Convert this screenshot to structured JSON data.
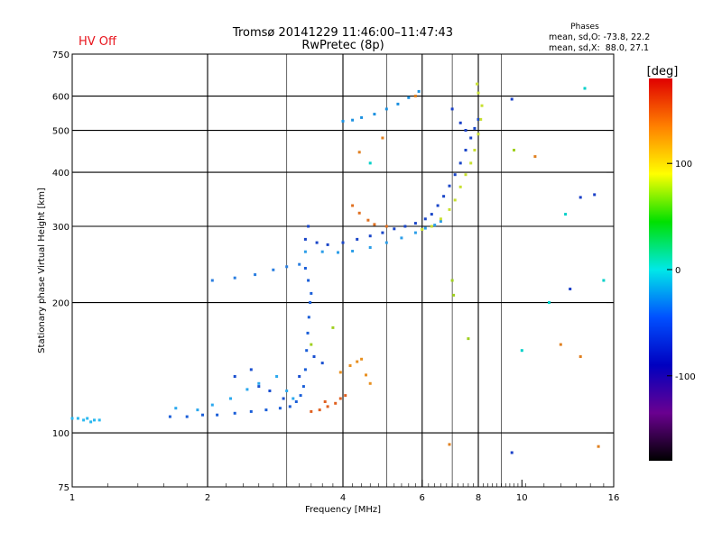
{
  "status": {
    "text": "HV Off",
    "color": "#e8141c"
  },
  "header": {
    "title_line1": "Tromsø 20141229 11:46:00–11:47:43",
    "title_line2": "RwPretec (8p)"
  },
  "phases_box": {
    "title": "Phases",
    "line1": "mean, sd,O: -73.8, 22.2",
    "line2": "mean, sd,X:  88.0, 27.1"
  },
  "chart_data": {
    "type": "scatter",
    "xlabel": "Frequency [MHz]",
    "ylabel": "Stationary phase Virtual Height [km]",
    "x_scale": "log",
    "y_scale": "log",
    "xlim": [
      1,
      16
    ],
    "ylim": [
      75,
      750
    ],
    "x_ticks": [
      1,
      2,
      4,
      6,
      8,
      10,
      16
    ],
    "y_ticks": [
      75,
      100,
      200,
      300,
      400,
      500,
      600,
      750
    ],
    "grid_x_major": [
      2,
      4,
      6,
      8
    ],
    "grid_y_major": [
      100,
      200,
      300,
      400,
      500,
      600
    ],
    "grid_x_minor": [
      3,
      5,
      7,
      9
    ],
    "colorbar": {
      "label": "[deg]",
      "range": [
        -180,
        180
      ],
      "ticks": [
        100,
        0,
        -100
      ],
      "colors": [
        "#e00000",
        "#ff8000",
        "#ffff00",
        "#00e000",
        "#00e8e8",
        "#0050ff",
        "#0000c0",
        "#6a0090",
        "#000000"
      ]
    },
    "series": [
      {
        "color": "#2ab8f0",
        "points": [
          [
            1.0,
            108
          ],
          [
            1.03,
            108
          ],
          [
            1.06,
            107
          ],
          [
            1.08,
            108
          ],
          [
            1.1,
            106
          ],
          [
            1.12,
            107
          ],
          [
            1.15,
            107
          ]
        ]
      },
      {
        "color": "#1a5ed8",
        "points": [
          [
            1.65,
            109
          ],
          [
            1.8,
            109
          ],
          [
            1.95,
            110
          ],
          [
            2.1,
            110
          ],
          [
            2.3,
            111
          ],
          [
            2.5,
            112
          ],
          [
            2.7,
            113
          ],
          [
            2.9,
            114
          ],
          [
            3.05,
            115
          ],
          [
            3.15,
            118
          ],
          [
            3.22,
            122
          ],
          [
            3.27,
            128
          ],
          [
            3.3,
            140
          ],
          [
            3.32,
            155
          ],
          [
            3.34,
            170
          ],
          [
            3.36,
            185
          ],
          [
            3.38,
            200
          ],
          [
            3.4,
            210
          ],
          [
            3.35,
            225
          ],
          [
            3.3,
            240
          ]
        ]
      },
      {
        "color": "#2aa8ee",
        "points": [
          [
            1.7,
            114
          ],
          [
            1.9,
            113
          ],
          [
            2.05,
            116
          ],
          [
            2.25,
            120
          ],
          [
            2.45,
            126
          ],
          [
            2.6,
            130
          ],
          [
            2.85,
            135
          ],
          [
            3.0,
            125
          ],
          [
            3.1,
            120
          ]
        ]
      },
      {
        "color": "#1a50d0",
        "points": [
          [
            2.3,
            135
          ],
          [
            2.5,
            140
          ],
          [
            2.6,
            128
          ],
          [
            2.75,
            125
          ],
          [
            2.95,
            120
          ],
          [
            3.2,
            135
          ],
          [
            3.45,
            150
          ],
          [
            3.6,
            145
          ]
        ]
      },
      {
        "color": "#e06020",
        "points": [
          [
            3.4,
            112
          ],
          [
            3.55,
            113
          ],
          [
            3.7,
            115
          ],
          [
            3.85,
            117
          ],
          [
            3.95,
            120
          ],
          [
            4.05,
            122
          ],
          [
            3.65,
            118
          ]
        ]
      },
      {
        "color": "#e89020",
        "points": [
          [
            3.95,
            138
          ],
          [
            4.15,
            143
          ],
          [
            4.3,
            146
          ],
          [
            4.4,
            148
          ],
          [
            4.5,
            136
          ],
          [
            4.6,
            130
          ]
        ]
      },
      {
        "color": "#2a7ee0",
        "points": [
          [
            2.05,
            225
          ],
          [
            2.3,
            228
          ],
          [
            2.55,
            232
          ],
          [
            2.8,
            238
          ],
          [
            3.0,
            242
          ],
          [
            3.2,
            245
          ]
        ]
      },
      {
        "color": "#2c9ee8",
        "points": [
          [
            3.3,
            262
          ],
          [
            3.6,
            262
          ],
          [
            3.9,
            261
          ],
          [
            4.2,
            263
          ],
          [
            4.6,
            268
          ],
          [
            5.0,
            275
          ],
          [
            5.4,
            282
          ],
          [
            5.8,
            290
          ],
          [
            6.1,
            297
          ],
          [
            6.4,
            302
          ],
          [
            6.6,
            308
          ]
        ]
      },
      {
        "color": "#1a46c8",
        "points": [
          [
            3.3,
            280
          ],
          [
            3.35,
            300
          ],
          [
            3.5,
            275
          ],
          [
            3.7,
            272
          ],
          [
            4.0,
            275
          ],
          [
            4.3,
            280
          ],
          [
            4.6,
            285
          ],
          [
            4.9,
            290
          ],
          [
            5.2,
            296
          ],
          [
            5.5,
            300
          ],
          [
            5.8,
            305
          ],
          [
            6.1,
            312
          ],
          [
            6.3,
            320
          ],
          [
            6.5,
            335
          ],
          [
            6.7,
            352
          ],
          [
            6.9,
            372
          ],
          [
            7.1,
            395
          ],
          [
            7.3,
            420
          ],
          [
            7.5,
            450
          ],
          [
            7.7,
            480
          ],
          [
            7.85,
            505
          ],
          [
            8.0,
            530
          ]
        ]
      },
      {
        "color": "#e07020",
        "points": [
          [
            4.2,
            335
          ],
          [
            4.35,
            322
          ],
          [
            4.55,
            310
          ],
          [
            4.7,
            303
          ],
          [
            5.0,
            300
          ]
        ]
      },
      {
        "color": "#c8e030",
        "points": [
          [
            6.0,
            295
          ],
          [
            6.3,
            300
          ],
          [
            6.6,
            312
          ],
          [
            6.9,
            328
          ],
          [
            7.1,
            345
          ],
          [
            7.3,
            370
          ],
          [
            7.5,
            395
          ],
          [
            7.7,
            420
          ],
          [
            7.85,
            450
          ],
          [
            8.0,
            490
          ],
          [
            8.1,
            530
          ],
          [
            8.15,
            570
          ],
          [
            8.0,
            610
          ],
          [
            7.95,
            640
          ]
        ]
      },
      {
        "color": "#1a90e0",
        "points": [
          [
            4.0,
            525
          ],
          [
            4.2,
            528
          ],
          [
            4.4,
            535
          ],
          [
            4.7,
            545
          ],
          [
            5.0,
            560
          ],
          [
            5.3,
            575
          ],
          [
            5.6,
            595
          ],
          [
            5.9,
            615
          ]
        ]
      },
      {
        "color": "#1a40c8",
        "points": [
          [
            7.0,
            560
          ],
          [
            7.3,
            520
          ],
          [
            7.5,
            500
          ],
          [
            9.5,
            590
          ],
          [
            13.5,
            350
          ],
          [
            14.5,
            355
          ],
          [
            12.8,
            215
          ],
          [
            9.5,
            90
          ]
        ]
      },
      {
        "color": "#00d0c8",
        "points": [
          [
            13.8,
            625
          ],
          [
            12.5,
            320
          ],
          [
            10.0,
            155
          ],
          [
            15.2,
            225
          ],
          [
            4.6,
            420
          ],
          [
            11.5,
            200
          ]
        ]
      },
      {
        "color": "#e08020",
        "points": [
          [
            10.7,
            435
          ],
          [
            12.2,
            160
          ],
          [
            13.5,
            150
          ],
          [
            14.8,
            93
          ],
          [
            4.35,
            445
          ],
          [
            4.9,
            480
          ],
          [
            5.8,
            600
          ],
          [
            6.9,
            94
          ]
        ]
      },
      {
        "color": "#a0d020",
        "points": [
          [
            7.0,
            225
          ],
          [
            7.05,
            208
          ],
          [
            7.6,
            165
          ],
          [
            3.4,
            160
          ],
          [
            9.6,
            450
          ],
          [
            3.8,
            175
          ]
        ]
      }
    ]
  }
}
